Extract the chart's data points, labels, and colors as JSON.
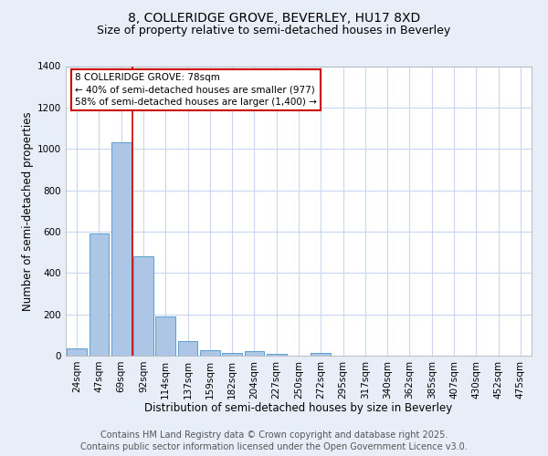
{
  "title_line1": "8, COLLERIDGE GROVE, BEVERLEY, HU17 8XD",
  "title_line2": "Size of property relative to semi-detached houses in Beverley",
  "xlabel": "Distribution of semi-detached houses by size in Beverley",
  "ylabel": "Number of semi-detached properties",
  "categories": [
    "24sqm",
    "47sqm",
    "69sqm",
    "92sqm",
    "114sqm",
    "137sqm",
    "159sqm",
    "182sqm",
    "204sqm",
    "227sqm",
    "250sqm",
    "272sqm",
    "295sqm",
    "317sqm",
    "340sqm",
    "362sqm",
    "385sqm",
    "407sqm",
    "430sqm",
    "452sqm",
    "475sqm"
  ],
  "values": [
    35,
    590,
    1030,
    480,
    190,
    70,
    25,
    15,
    20,
    10,
    0,
    15,
    0,
    0,
    0,
    0,
    0,
    0,
    0,
    0,
    0
  ],
  "bar_color": "#adc6e5",
  "bar_edge_color": "#5a9fd4",
  "red_line_index": 2,
  "annotation_line1": "8 COLLERIDGE GROVE: 78sqm",
  "annotation_line2": "← 40% of semi-detached houses are smaller (977)",
  "annotation_line3": "58% of semi-detached houses are larger (1,400) →",
  "annotation_box_color": "#ffffff",
  "annotation_box_edge_color": "#cc0000",
  "ylim": [
    0,
    1400
  ],
  "yticks": [
    0,
    200,
    400,
    600,
    800,
    1000,
    1200,
    1400
  ],
  "footer_line1": "Contains HM Land Registry data © Crown copyright and database right 2025.",
  "footer_line2": "Contains public sector information licensed under the Open Government Licence v3.0.",
  "background_color": "#e8eef8",
  "plot_bg_color": "#ffffff",
  "grid_color": "#c8d8ee",
  "red_line_color": "#cc0000",
  "title_fontsize": 10,
  "subtitle_fontsize": 9,
  "axis_label_fontsize": 8.5,
  "tick_fontsize": 7.5,
  "annotation_fontsize": 7.5,
  "footer_fontsize": 7
}
